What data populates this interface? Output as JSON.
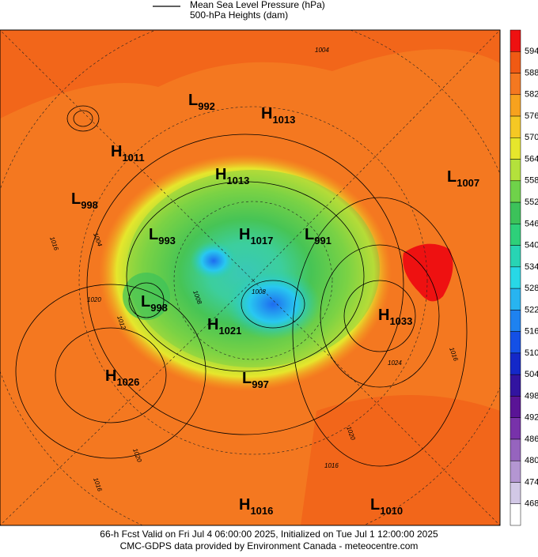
{
  "legend": {
    "line_title": "Mean Sea Level Pressure (hPa)",
    "fill_title": "500-hPa Heights (dam)"
  },
  "colorbar": {
    "labels": [
      594,
      588,
      582,
      576,
      570,
      564,
      558,
      552,
      546,
      540,
      534,
      528,
      522,
      516,
      510,
      504,
      498,
      492,
      486,
      480,
      474,
      468
    ]
  },
  "centers": [
    {
      "kind": "L",
      "value": 992
    },
    {
      "kind": "H",
      "value": 1013
    },
    {
      "kind": "H",
      "value": 1011
    },
    {
      "kind": "L",
      "value": 998
    },
    {
      "kind": "H",
      "value": 1013
    },
    {
      "kind": "L",
      "value": 1007
    },
    {
      "kind": "L",
      "value": 993
    },
    {
      "kind": "H",
      "value": 1017
    },
    {
      "kind": "L",
      "value": 991
    },
    {
      "kind": "L",
      "value": 998
    },
    {
      "kind": "H",
      "value": 1021
    },
    {
      "kind": "H",
      "value": 1033
    },
    {
      "kind": "H",
      "value": 1026
    },
    {
      "kind": "L",
      "value": 997
    },
    {
      "kind": "H",
      "value": 1016
    },
    {
      "kind": "L",
      "value": 1010
    }
  ],
  "isobar_labels": [
    1004,
    1016,
    1004,
    1020,
    1012,
    1008,
    1024,
    1016,
    1020,
    1016,
    1020,
    1016,
    1008
  ],
  "footer": [
    "66-h Fcst Valid on Fri Jul  4 06:00:00 2025, Initialized on Tue Jul  1 12:00:00 2025",
    "CMC-GDPS data provided by Environment Canada - meteocentre.com"
  ]
}
